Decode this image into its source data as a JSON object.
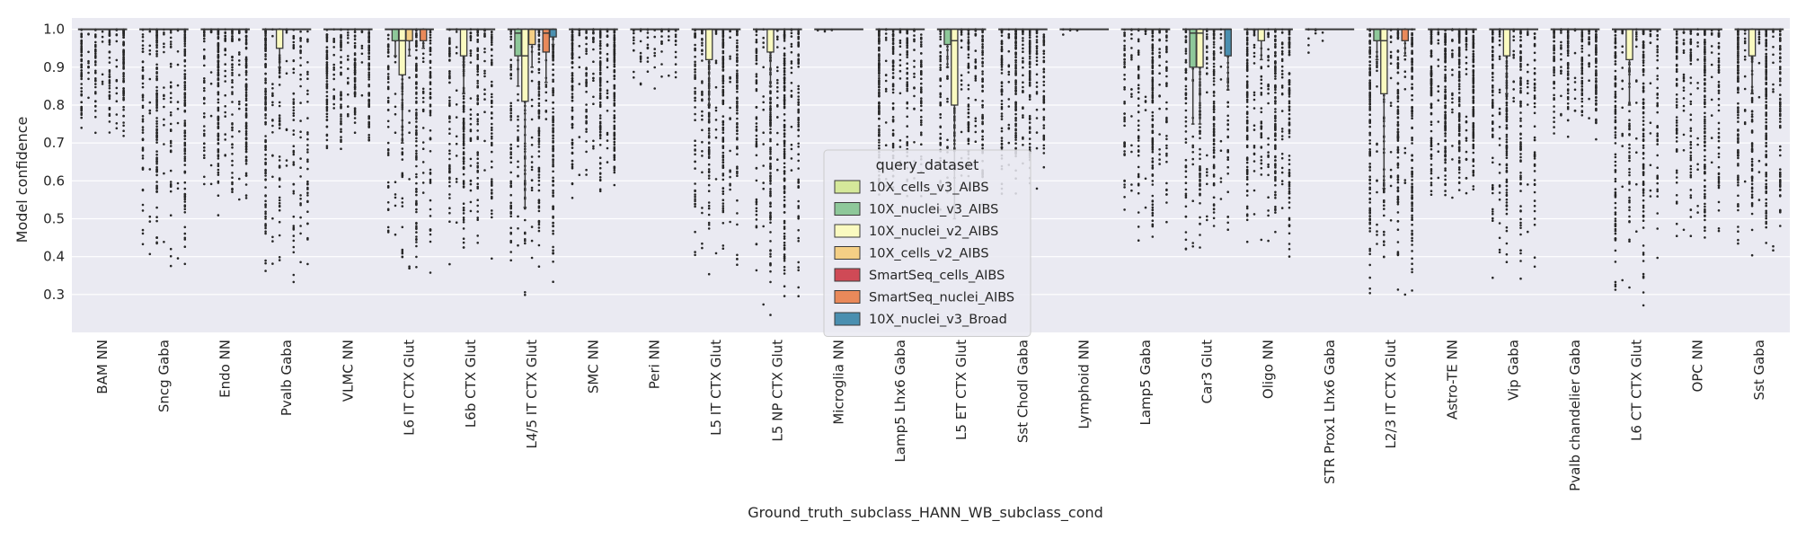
{
  "chart_data": {
    "type": "box",
    "xlabel": "Ground_truth_subclass_HANN_WB_subclass_cond",
    "ylabel": "Model confidence",
    "ylim": [
      0.2,
      1.03
    ],
    "y_ticks": [
      0.3,
      0.4,
      0.5,
      0.6,
      0.7,
      0.8,
      0.9,
      1.0
    ],
    "y_tick_labels": [
      "0.3",
      "0.4",
      "0.5",
      "0.6",
      "0.7",
      "0.8",
      "0.9",
      "1.0"
    ],
    "grid": true,
    "legend": {
      "title": "query_dataset",
      "placement": "center",
      "entries": [
        {
          "name": "10X_cells_v3_AIBS",
          "color": "#d5e89a"
        },
        {
          "name": "10X_nuclei_v3_AIBS",
          "color": "#8ec89a"
        },
        {
          "name": "10X_nuclei_v2_AIBS",
          "color": "#fafac0"
        },
        {
          "name": "10X_cells_v2_AIBS",
          "color": "#f4cf85"
        },
        {
          "name": "SmartSeq_cells_AIBS",
          "color": "#cf4a56"
        },
        {
          "name": "SmartSeq_nuclei_AIBS",
          "color": "#e9895a"
        },
        {
          "name": "10X_nuclei_v3_Broad",
          "color": "#4a8fb0"
        }
      ]
    },
    "categories": [
      "BAM NN",
      "Sncg Gaba",
      "Endo NN",
      "Pvalb Gaba",
      "VLMC NN",
      "L6 IT CTX Glut",
      "L6b CTX Glut",
      "L4/5 IT CTX Glut",
      "SMC NN",
      "Peri NN",
      "L5 IT CTX Glut",
      "L5 NP CTX Glut",
      "Microglia NN",
      "Lamp5 Lhx6 Gaba",
      "L5 ET CTX Glut",
      "Sst Chodl Gaba",
      "Lymphoid NN",
      "Lamp5 Gaba",
      "Car3 Glut",
      "Oligo NN",
      "STR Prox1 Lhx6 Gaba",
      "L2/3 IT CTX Glut",
      "Astro-TE NN",
      "Vip Gaba",
      "Pvalb chandelier Gaba",
      "L6 CT CTX Glut",
      "OPC NN",
      "Sst Gaba"
    ],
    "boxes": [
      {
        "category": "L6 IT CTX Glut",
        "series": "10X_nuclei_v3_AIBS",
        "q1": 0.97,
        "median": 1.0,
        "q3": 1.0,
        "whisker_low": 0.93,
        "whisker_high": 1.0
      },
      {
        "category": "L6 IT CTX Glut",
        "series": "10X_nuclei_v2_AIBS",
        "q1": 0.88,
        "median": 0.97,
        "q3": 1.0,
        "whisker_low": 0.7,
        "whisker_high": 1.0
      },
      {
        "category": "L6 IT CTX Glut",
        "series": "10X_cells_v2_AIBS",
        "q1": 0.97,
        "median": 1.0,
        "q3": 1.0,
        "whisker_low": 0.93,
        "whisker_high": 1.0
      },
      {
        "category": "L6 IT CTX Glut",
        "series": "SmartSeq_nuclei_AIBS",
        "q1": 0.97,
        "median": 1.0,
        "q3": 1.0,
        "whisker_low": 0.95,
        "whisker_high": 1.0
      },
      {
        "category": "L6b CTX Glut",
        "series": "10X_nuclei_v2_AIBS",
        "q1": 0.93,
        "median": 1.0,
        "q3": 1.0,
        "whisker_low": 0.83,
        "whisker_high": 1.0
      },
      {
        "category": "L4/5 IT CTX Glut",
        "series": "10X_nuclei_v3_AIBS",
        "q1": 0.93,
        "median": 0.99,
        "q3": 1.0,
        "whisker_low": 0.85,
        "whisker_high": 1.0
      },
      {
        "category": "L4/5 IT CTX Glut",
        "series": "10X_nuclei_v2_AIBS",
        "q1": 0.81,
        "median": 0.93,
        "q3": 1.0,
        "whisker_low": 0.53,
        "whisker_high": 1.0
      },
      {
        "category": "L4/5 IT CTX Glut",
        "series": "10X_cells_v2_AIBS",
        "q1": 0.96,
        "median": 1.0,
        "q3": 1.0,
        "whisker_low": 0.9,
        "whisker_high": 1.0
      },
      {
        "category": "L4/5 IT CTX Glut",
        "series": "SmartSeq_nuclei_AIBS",
        "q1": 0.94,
        "median": 0.99,
        "q3": 1.0,
        "whisker_low": 0.86,
        "whisker_high": 1.0
      },
      {
        "category": "L4/5 IT CTX Glut",
        "series": "10X_nuclei_v3_Broad",
        "q1": 0.98,
        "median": 1.0,
        "q3": 1.0,
        "whisker_low": 0.96,
        "whisker_high": 1.0
      },
      {
        "category": "L5 IT CTX Glut",
        "series": "10X_nuclei_v2_AIBS",
        "q1": 0.92,
        "median": 1.0,
        "q3": 1.0,
        "whisker_low": 0.8,
        "whisker_high": 1.0
      },
      {
        "category": "L5 NP CTX Glut",
        "series": "10X_nuclei_v2_AIBS",
        "q1": 0.94,
        "median": 1.0,
        "q3": 1.0,
        "whisker_low": 0.85,
        "whisker_high": 1.0
      },
      {
        "category": "L5 ET CTX Glut",
        "series": "10X_nuclei_v3_AIBS",
        "q1": 0.96,
        "median": 1.0,
        "q3": 1.0,
        "whisker_low": 0.9,
        "whisker_high": 1.0
      },
      {
        "category": "L5 ET CTX Glut",
        "series": "10X_nuclei_v2_AIBS",
        "q1": 0.8,
        "median": 0.97,
        "q3": 1.0,
        "whisker_low": 0.5,
        "whisker_high": 1.0
      },
      {
        "category": "Car3 Glut",
        "series": "10X_nuclei_v3_AIBS",
        "q1": 0.9,
        "median": 0.99,
        "q3": 1.0,
        "whisker_low": 0.75,
        "whisker_high": 1.0
      },
      {
        "category": "Car3 Glut",
        "series": "10X_nuclei_v2_AIBS",
        "q1": 0.9,
        "median": 0.99,
        "q3": 1.0,
        "whisker_low": 0.75,
        "whisker_high": 1.0
      },
      {
        "category": "Car3 Glut",
        "series": "10X_nuclei_v3_Broad",
        "q1": 0.93,
        "median": 1.0,
        "q3": 1.0,
        "whisker_low": 0.84,
        "whisker_high": 1.0
      },
      {
        "category": "Oligo NN",
        "series": "10X_nuclei_v2_AIBS",
        "q1": 0.97,
        "median": 1.0,
        "q3": 1.0,
        "whisker_low": 0.92,
        "whisker_high": 1.0
      },
      {
        "category": "L2/3 IT CTX Glut",
        "series": "10X_nuclei_v3_AIBS",
        "q1": 0.97,
        "median": 1.0,
        "q3": 1.0,
        "whisker_low": 0.92,
        "whisker_high": 1.0
      },
      {
        "category": "L2/3 IT CTX Glut",
        "series": "10X_nuclei_v2_AIBS",
        "q1": 0.83,
        "median": 0.97,
        "q3": 1.0,
        "whisker_low": 0.58,
        "whisker_high": 1.0
      },
      {
        "category": "L2/3 IT CTX Glut",
        "series": "SmartSeq_nuclei_AIBS",
        "q1": 0.97,
        "median": 1.0,
        "q3": 1.0,
        "whisker_low": 0.93,
        "whisker_high": 1.0
      },
      {
        "category": "Vip Gaba",
        "series": "10X_nuclei_v2_AIBS",
        "q1": 0.93,
        "median": 1.0,
        "q3": 1.0,
        "whisker_low": 0.83,
        "whisker_high": 1.0
      },
      {
        "category": "L6 CT CTX Glut",
        "series": "10X_nuclei_v2_AIBS",
        "q1": 0.92,
        "median": 1.0,
        "q3": 1.0,
        "whisker_low": 0.8,
        "whisker_high": 1.0
      },
      {
        "category": "Sst Gaba",
        "series": "10X_nuclei_v2_AIBS",
        "q1": 0.93,
        "median": 1.0,
        "q3": 1.0,
        "whisker_low": 0.83,
        "whisker_high": 1.0
      },
      {
        "category": "Pvalb Gaba",
        "series": "10X_nuclei_v2_AIBS",
        "q1": 0.95,
        "median": 1.0,
        "q3": 1.0,
        "whisker_low": 0.9,
        "whisker_high": 1.0
      }
    ],
    "outlier_floor": [
      0.7,
      0.34,
      0.5,
      0.3,
      0.66,
      0.32,
      0.35,
      0.26,
      0.55,
      0.81,
      0.34,
      0.24,
      0.99,
      0.5,
      0.5,
      0.54,
      0.98,
      0.4,
      0.37,
      0.36,
      0.92,
      0.27,
      0.51,
      0.32,
      0.7,
      0.25,
      0.41,
      0.36
    ]
  }
}
